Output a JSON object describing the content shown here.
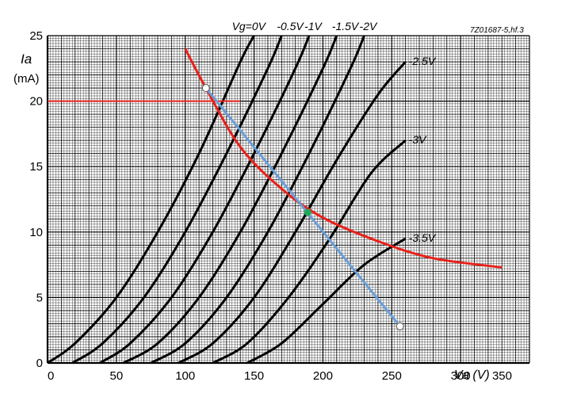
{
  "chart_data": {
    "type": "line",
    "reference": "7Z01687-5,hf.3",
    "xlabel": "Va (V)",
    "ylabel": "Ia",
    "yunit": "(mA)",
    "xlim": [
      0,
      350
    ],
    "ylim": [
      0,
      25
    ],
    "x_ticks": [
      "0",
      "50",
      "100",
      "150",
      "200",
      "250",
      "300",
      "350"
    ],
    "y_ticks": [
      "0",
      "5",
      "10",
      "15",
      "20",
      "25"
    ],
    "grid": true,
    "series": [
      {
        "name": "Vg=0V",
        "points": [
          [
            0,
            0
          ],
          [
            20,
            1.5
          ],
          [
            50,
            5
          ],
          [
            80,
            10
          ],
          [
            110,
            16
          ],
          [
            140,
            23
          ],
          [
            150,
            25
          ]
        ]
      },
      {
        "name": "-0.5V",
        "points": [
          [
            18,
            0
          ],
          [
            40,
            1.5
          ],
          [
            70,
            5
          ],
          [
            100,
            10
          ],
          [
            130,
            16
          ],
          [
            160,
            22.5
          ],
          [
            170,
            25
          ]
        ]
      },
      {
        "name": "-1V",
        "points": [
          [
            38,
            0
          ],
          [
            60,
            1.5
          ],
          [
            90,
            5
          ],
          [
            120,
            10
          ],
          [
            150,
            16
          ],
          [
            180,
            22.5
          ],
          [
            190,
            25
          ]
        ]
      },
      {
        "name": "-1.5V",
        "points": [
          [
            55,
            0
          ],
          [
            80,
            1.5
          ],
          [
            110,
            5
          ],
          [
            140,
            10
          ],
          [
            170,
            16
          ],
          [
            200,
            22.5
          ],
          [
            210,
            25
          ]
        ]
      },
      {
        "name": "-2V",
        "points": [
          [
            75,
            0
          ],
          [
            100,
            1.5
          ],
          [
            130,
            5
          ],
          [
            160,
            10
          ],
          [
            190,
            16
          ],
          [
            220,
            22.5
          ],
          [
            230,
            25
          ]
        ]
      },
      {
        "name": "-2.5V",
        "points": [
          [
            95,
            0
          ],
          [
            120,
            1.5
          ],
          [
            150,
            5
          ],
          [
            180,
            10
          ],
          [
            210,
            15.5
          ],
          [
            240,
            20.5
          ],
          [
            260,
            23
          ]
        ]
      },
      {
        "name": "-3V",
        "points": [
          [
            120,
            0
          ],
          [
            145,
            1.5
          ],
          [
            175,
            5
          ],
          [
            205,
            9.5
          ],
          [
            235,
            14.5
          ],
          [
            260,
            17
          ]
        ]
      },
      {
        "name": "-3.5V",
        "points": [
          [
            145,
            0
          ],
          [
            170,
            1.5
          ],
          [
            200,
            4.5
          ],
          [
            230,
            7.5
          ],
          [
            260,
            9.5
          ]
        ]
      }
    ],
    "annotations": {
      "dissipation_curve": [
        [
          100,
          24
        ],
        [
          115,
          21
        ],
        [
          140,
          16.5
        ],
        [
          170,
          13.3
        ],
        [
          200,
          11.1
        ],
        [
          240,
          9.3
        ],
        [
          280,
          8
        ],
        [
          330,
          7.3
        ]
      ],
      "reference_line": {
        "y": 20,
        "x_from": 0,
        "x_to": 140
      },
      "load_line": {
        "from": [
          115,
          21
        ],
        "to": [
          256,
          2.8
        ]
      },
      "operating_point": [
        189,
        11.5
      ],
      "load_line_color": "#6a9fd8",
      "curve_color": "#e8201a",
      "operating_point_color": "#22a85a"
    }
  }
}
